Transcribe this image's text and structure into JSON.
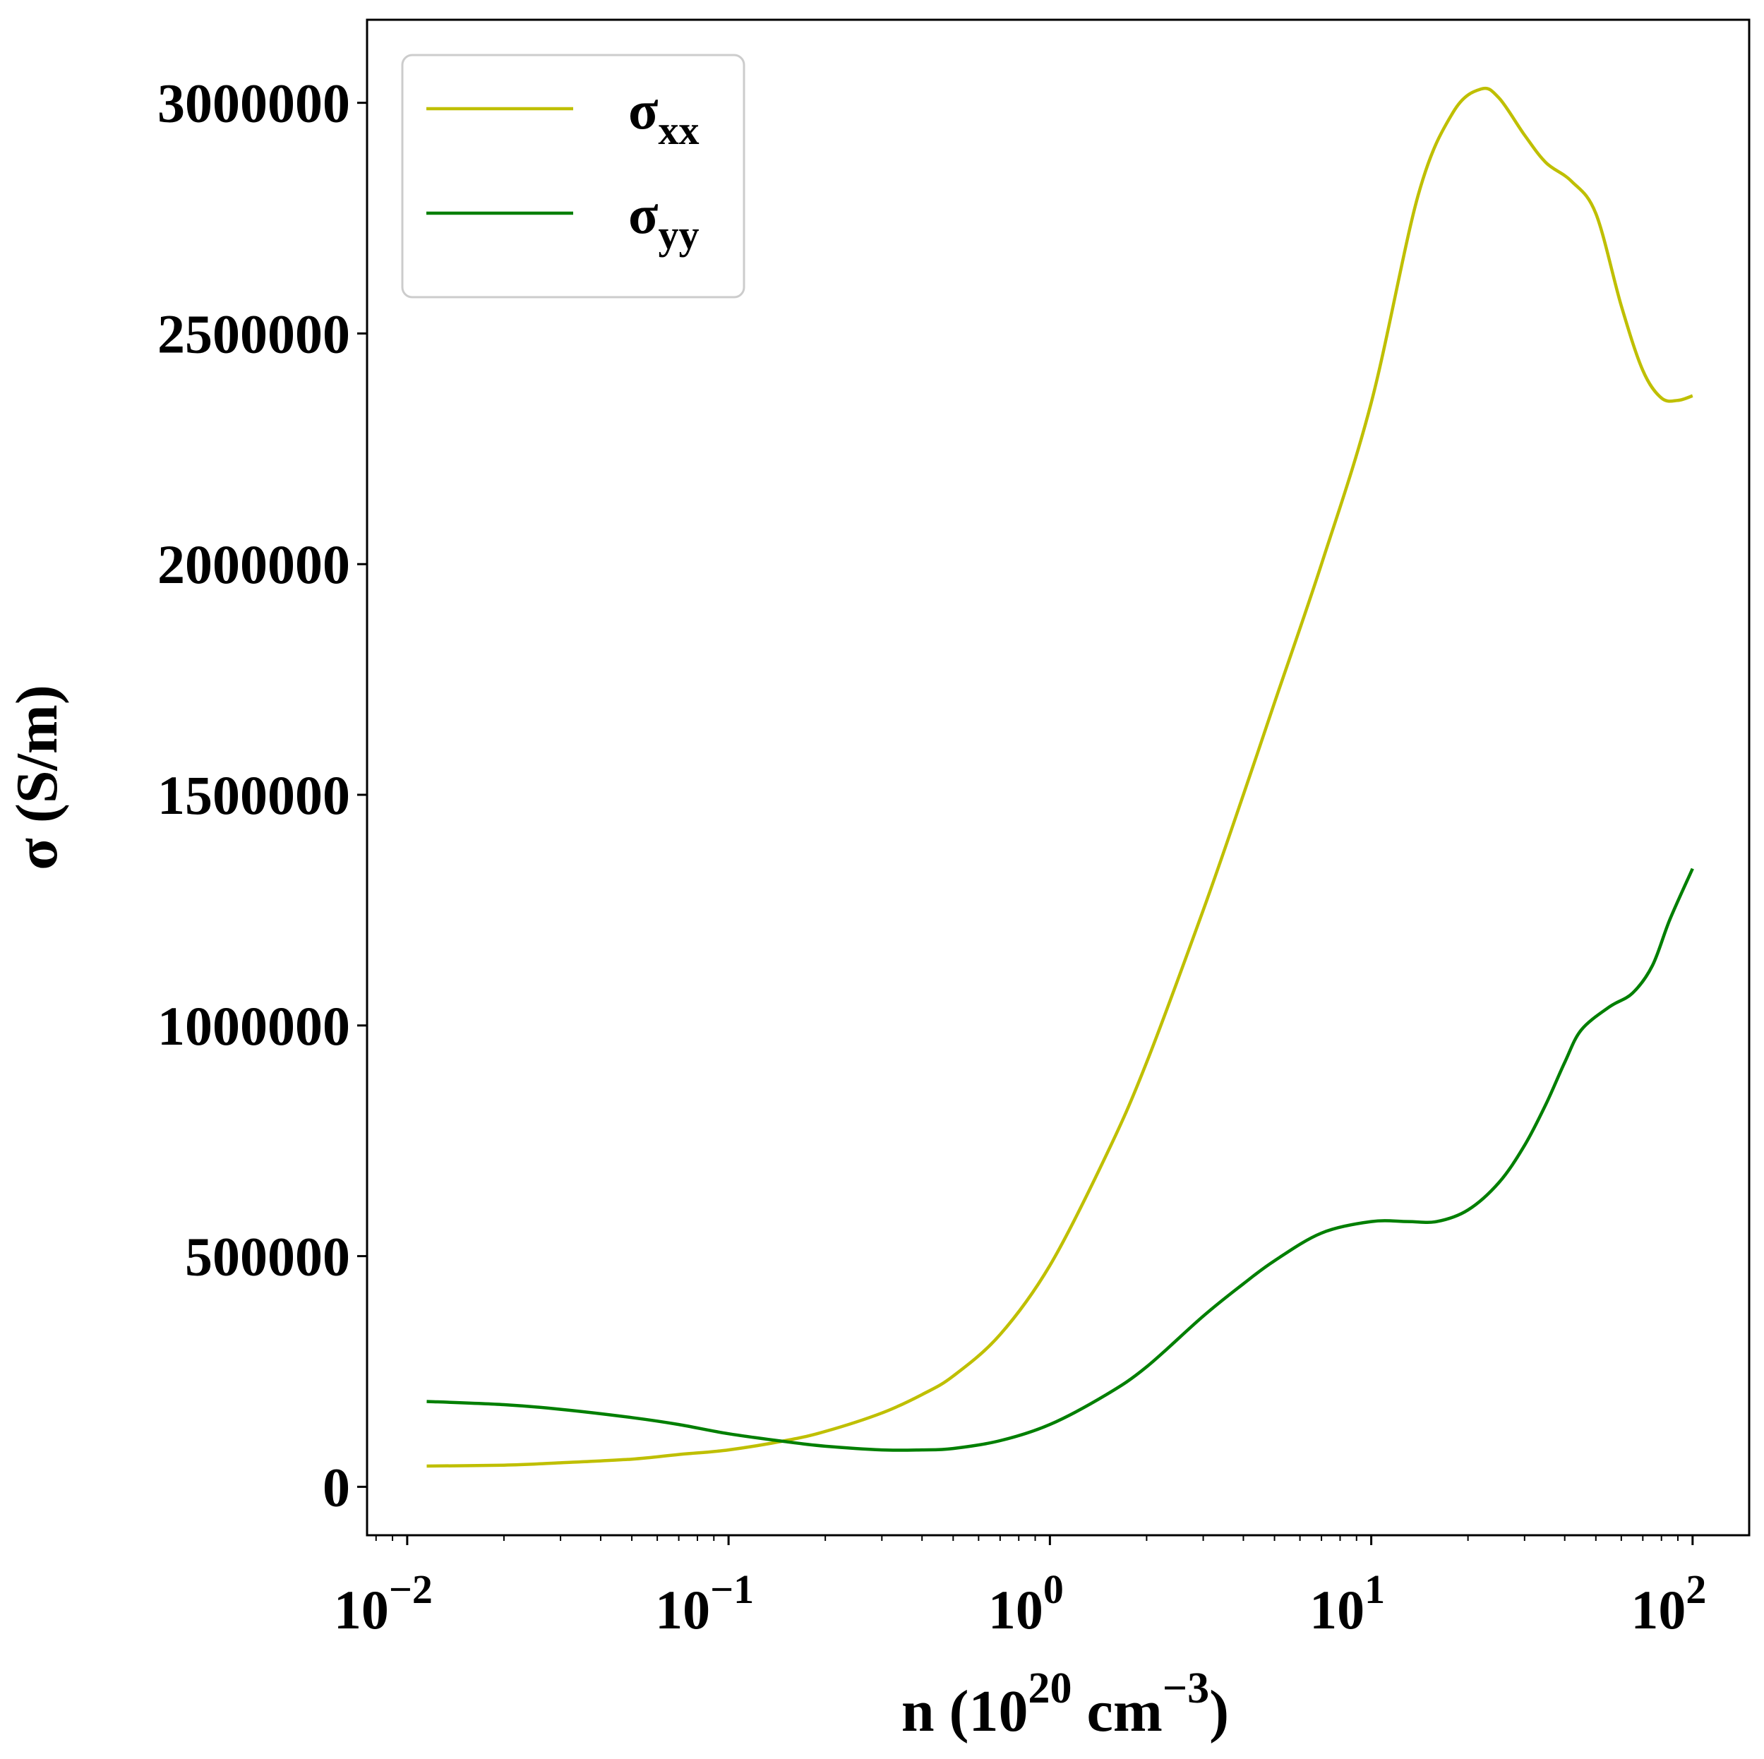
{
  "chart_data": {
    "type": "line",
    "xscale": "log",
    "xlim": [
      0.0075,
      150
    ],
    "ylim": [
      -105000,
      3180000
    ],
    "grid": false,
    "legend": {
      "placement": "top-left",
      "frame": true
    },
    "xlabel": {
      "base": "n (10",
      "sup1": "20",
      "mid": " cm",
      "sup2": "−3",
      "end": ")"
    },
    "ylabel": "σ (S/m)",
    "yticks": [
      {
        "value": 0,
        "label": "0"
      },
      {
        "value": 500000,
        "label": "500000"
      },
      {
        "value": 1000000,
        "label": "1000000"
      },
      {
        "value": 1500000,
        "label": "1500000"
      },
      {
        "value": 2000000,
        "label": "2000000"
      },
      {
        "value": 2500000,
        "label": "2500000"
      },
      {
        "value": 3000000,
        "label": "3000000"
      }
    ],
    "xticks": [
      {
        "value": 0.01,
        "base": "10",
        "exp": "−2"
      },
      {
        "value": 0.1,
        "base": "10",
        "exp": "−1"
      },
      {
        "value": 1,
        "base": "10",
        "exp": "0"
      },
      {
        "value": 10,
        "base": "10",
        "exp": "1"
      },
      {
        "value": 100,
        "base": "10",
        "exp": "2"
      }
    ],
    "series": [
      {
        "name": "σ",
        "subscript": "xx",
        "color": "#bfbf00",
        "points": [
          [
            0.0115,
            45000
          ],
          [
            0.02,
            47000
          ],
          [
            0.03,
            52000
          ],
          [
            0.05,
            60000
          ],
          [
            0.07,
            70000
          ],
          [
            0.1,
            80000
          ],
          [
            0.15,
            100000
          ],
          [
            0.2,
            120000
          ],
          [
            0.3,
            160000
          ],
          [
            0.4,
            200000
          ],
          [
            0.5,
            240000
          ],
          [
            0.7,
            330000
          ],
          [
            1.0,
            480000
          ],
          [
            1.5,
            720000
          ],
          [
            2.0,
            920000
          ],
          [
            3.0,
            1250000
          ],
          [
            4.0,
            1500000
          ],
          [
            5.0,
            1700000
          ],
          [
            7.0,
            2000000
          ],
          [
            10.0,
            2350000
          ],
          [
            14.0,
            2800000
          ],
          [
            18.0,
            2980000
          ],
          [
            22.0,
            3030000
          ],
          [
            25.0,
            3010000
          ],
          [
            30.0,
            2930000
          ],
          [
            35.0,
            2870000
          ],
          [
            42.0,
            2830000
          ],
          [
            50.0,
            2760000
          ],
          [
            60.0,
            2560000
          ],
          [
            70.0,
            2420000
          ],
          [
            80.0,
            2360000
          ],
          [
            90.0,
            2355000
          ],
          [
            100.0,
            2365000
          ]
        ]
      },
      {
        "name": "σ",
        "subscript": "yy",
        "color": "#007f00",
        "points": [
          [
            0.0115,
            185000
          ],
          [
            0.02,
            178000
          ],
          [
            0.03,
            168000
          ],
          [
            0.05,
            150000
          ],
          [
            0.07,
            135000
          ],
          [
            0.1,
            115000
          ],
          [
            0.15,
            98000
          ],
          [
            0.2,
            88000
          ],
          [
            0.3,
            80000
          ],
          [
            0.4,
            80000
          ],
          [
            0.5,
            83000
          ],
          [
            0.7,
            100000
          ],
          [
            1.0,
            135000
          ],
          [
            1.5,
            200000
          ],
          [
            2.0,
            260000
          ],
          [
            3.0,
            370000
          ],
          [
            4.0,
            440000
          ],
          [
            5.0,
            490000
          ],
          [
            7.0,
            550000
          ],
          [
            10.0,
            575000
          ],
          [
            13.0,
            575000
          ],
          [
            16.0,
            575000
          ],
          [
            20.0,
            600000
          ],
          [
            25.0,
            660000
          ],
          [
            30.0,
            740000
          ],
          [
            35.0,
            830000
          ],
          [
            40.0,
            920000
          ],
          [
            45.0,
            990000
          ],
          [
            55.0,
            1040000
          ],
          [
            65.0,
            1070000
          ],
          [
            75.0,
            1130000
          ],
          [
            85.0,
            1230000
          ],
          [
            100.0,
            1340000
          ]
        ]
      }
    ]
  }
}
